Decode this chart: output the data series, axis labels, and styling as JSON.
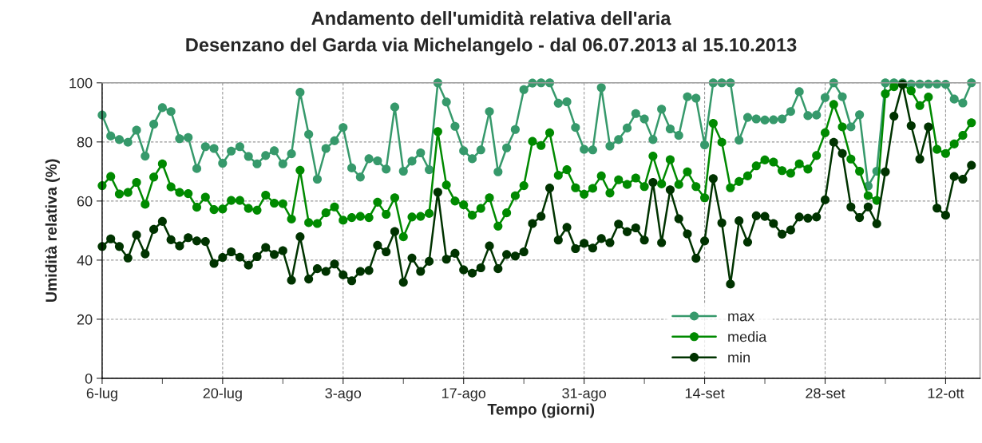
{
  "chart_data": {
    "type": "line",
    "title": "Andamento dell'umidità relativa dell'aria",
    "subtitle": "Desenzano del Garda via Michelangelo - dal 06.07.2013 al 15.10.2013",
    "xlabel": "Tempo (giorni)",
    "ylabel": "Umidità relativa (%)",
    "x": [
      "2013-07-06",
      "2013-07-07",
      "2013-07-08",
      "2013-07-09",
      "2013-07-10",
      "2013-07-11",
      "2013-07-12",
      "2013-07-13",
      "2013-07-14",
      "2013-07-15",
      "2013-07-16",
      "2013-07-17",
      "2013-07-18",
      "2013-07-19",
      "2013-07-20",
      "2013-07-21",
      "2013-07-22",
      "2013-07-23",
      "2013-07-24",
      "2013-07-25",
      "2013-07-26",
      "2013-07-27",
      "2013-07-28",
      "2013-07-29",
      "2013-07-30",
      "2013-07-31",
      "2013-08-01",
      "2013-08-02",
      "2013-08-03",
      "2013-08-04",
      "2013-08-05",
      "2013-08-06",
      "2013-08-07",
      "2013-08-08",
      "2013-08-09",
      "2013-08-10",
      "2013-08-11",
      "2013-08-12",
      "2013-08-13",
      "2013-08-14",
      "2013-08-15",
      "2013-08-16",
      "2013-08-17",
      "2013-08-18",
      "2013-08-19",
      "2013-08-20",
      "2013-08-21",
      "2013-08-22",
      "2013-08-23",
      "2013-08-24",
      "2013-08-25",
      "2013-08-26",
      "2013-08-27",
      "2013-08-28",
      "2013-08-29",
      "2013-08-30",
      "2013-08-31",
      "2013-09-01",
      "2013-09-02",
      "2013-09-03",
      "2013-09-04",
      "2013-09-05",
      "2013-09-06",
      "2013-09-07",
      "2013-09-08",
      "2013-09-09",
      "2013-09-10",
      "2013-09-11",
      "2013-09-12",
      "2013-09-13",
      "2013-09-14",
      "2013-09-15",
      "2013-09-16",
      "2013-09-17",
      "2013-09-18",
      "2013-09-19",
      "2013-09-20",
      "2013-09-21",
      "2013-09-22",
      "2013-09-23",
      "2013-09-24",
      "2013-09-25",
      "2013-09-26",
      "2013-09-27",
      "2013-09-28",
      "2013-09-29",
      "2013-09-30",
      "2013-10-01",
      "2013-10-02",
      "2013-10-03",
      "2013-10-04",
      "2013-10-05",
      "2013-10-06",
      "2013-10-07",
      "2013-10-08",
      "2013-10-09",
      "2013-10-10",
      "2013-10-11",
      "2013-10-12",
      "2013-10-13",
      "2013-10-14",
      "2013-10-15"
    ],
    "series": [
      {
        "name": "max",
        "color": "#36996b",
        "values": [
          89.1,
          82.0,
          80.8,
          79.9,
          84.0,
          75.2,
          86.0,
          91.6,
          90.3,
          81.1,
          81.5,
          71.0,
          78.4,
          77.8,
          72.8,
          76.9,
          78.4,
          75.1,
          72.6,
          75.4,
          77.0,
          72.6,
          76.0,
          96.8,
          82.6,
          67.4,
          77.8,
          80.4,
          84.9,
          71.2,
          68.1,
          74.3,
          73.6,
          70.8,
          91.8,
          70.1,
          73.5,
          76.3,
          70.6,
          100,
          93.5,
          85.3,
          77.0,
          74.3,
          77.3,
          90.3,
          69.9,
          78.0,
          84.2,
          97.7,
          99.9,
          100,
          100,
          93.1,
          93.6,
          84.9,
          77.5,
          77.3,
          98.4,
          78.6,
          80.8,
          84.7,
          89.6,
          87.8,
          80.8,
          91.1,
          84.4,
          82.2,
          95.3,
          94.8,
          79.0,
          100,
          100,
          100,
          80.6,
          88.3,
          87.8,
          87.4,
          87.5,
          87.8,
          90.3,
          97.0,
          88.9,
          89.1,
          95.0,
          100,
          95.3,
          85.1,
          89.2,
          65.1,
          70.1,
          100,
          100,
          100,
          99.6,
          99.6,
          99.6,
          99.6,
          99.5,
          94.5,
          93.2,
          100
        ]
      },
      {
        "name": "media",
        "color": "#008a00",
        "values": [
          65.2,
          68.3,
          62.4,
          62.9,
          66.3,
          58.9,
          68.1,
          72.6,
          64.8,
          62.9,
          62.5,
          57.9,
          61.3,
          57.1,
          57.3,
          60.2,
          60.2,
          57.5,
          56.9,
          62.0,
          59.3,
          59.1,
          53.9,
          70.4,
          52.7,
          52.4,
          56.0,
          58.0,
          53.5,
          54.4,
          54.8,
          54.4,
          59.6,
          55.5,
          61.1,
          47.9,
          54.6,
          54.8,
          55.8,
          83.5,
          65.4,
          60.0,
          58.7,
          55.2,
          57.5,
          61.1,
          51.5,
          56.0,
          61.8,
          65.2,
          80.2,
          78.8,
          83.1,
          68.7,
          70.6,
          64.5,
          62.3,
          64.3,
          68.5,
          62.7,
          67.2,
          65.6,
          67.8,
          64.9,
          75.2,
          65.8,
          74.0,
          65.6,
          69.9,
          64.9,
          61.1,
          86.3,
          79.9,
          64.5,
          66.6,
          68.5,
          71.9,
          73.9,
          73.2,
          70.3,
          69.4,
          72.6,
          70.8,
          75.4,
          83.1,
          92.7,
          85.1,
          74.2,
          70.1,
          61.8,
          60.2,
          96.3,
          98.7,
          99.5,
          97.3,
          92.3,
          95.2,
          77.5,
          76.1,
          79.3,
          82.2,
          86.5
        ]
      },
      {
        "name": "min",
        "color": "#003300",
        "values": [
          44.6,
          47.2,
          44.6,
          40.7,
          48.5,
          42.1,
          50.4,
          53.1,
          46.9,
          44.8,
          47.6,
          46.5,
          46.3,
          38.9,
          40.9,
          42.8,
          41.0,
          38.3,
          41.2,
          44.3,
          41.9,
          43.2,
          33.2,
          47.9,
          33.6,
          37.1,
          36.2,
          38.7,
          35.0,
          33.0,
          36.2,
          36.5,
          45.0,
          42.8,
          49.7,
          32.5,
          40.7,
          36.2,
          39.6,
          63.0,
          40.3,
          42.3,
          36.7,
          35.6,
          37.4,
          44.8,
          37.1,
          41.9,
          41.4,
          42.8,
          52.4,
          54.8,
          64.4,
          46.8,
          51.1,
          43.9,
          45.7,
          44.1,
          47.3,
          45.9,
          52.2,
          49.6,
          50.9,
          46.8,
          66.3,
          45.9,
          63.8,
          54.0,
          48.9,
          40.6,
          46.5,
          67.6,
          52.6,
          31.9,
          53.3,
          46.1,
          55.0,
          54.8,
          52.4,
          48.8,
          50.2,
          54.6,
          54.2,
          54.6,
          60.4,
          79.9,
          76.1,
          58.0,
          54.4,
          58.0,
          52.3,
          69.9,
          88.7,
          99.5,
          85.5,
          74.2,
          85.1,
          57.6,
          55.2,
          68.3,
          67.4,
          72.1
        ]
      }
    ],
    "xlim": [
      "2013-07-06",
      "2013-10-16"
    ],
    "xticks": [
      {
        "value": "2013-07-06",
        "label": "6-lug"
      },
      {
        "value": "2013-07-13",
        "label": null
      },
      {
        "value": "2013-07-20",
        "label": "20-lug"
      },
      {
        "value": "2013-07-27",
        "label": null
      },
      {
        "value": "2013-08-03",
        "label": "3-ago"
      },
      {
        "value": "2013-08-10",
        "label": null
      },
      {
        "value": "2013-08-17",
        "label": "17-ago"
      },
      {
        "value": "2013-08-24",
        "label": null
      },
      {
        "value": "2013-08-31",
        "label": "31-ago"
      },
      {
        "value": "2013-09-07",
        "label": null
      },
      {
        "value": "2013-09-14",
        "label": "14-set"
      },
      {
        "value": "2013-09-21",
        "label": null
      },
      {
        "value": "2013-09-28",
        "label": "28-set"
      },
      {
        "value": "2013-10-05",
        "label": null
      },
      {
        "value": "2013-10-12",
        "label": "12-ott"
      }
    ],
    "ylim": [
      0,
      100
    ],
    "yticks": [
      0,
      20,
      40,
      60,
      80,
      100
    ],
    "grid": true,
    "legend": "bottom",
    "marker": "circle",
    "line_style": "solid"
  }
}
